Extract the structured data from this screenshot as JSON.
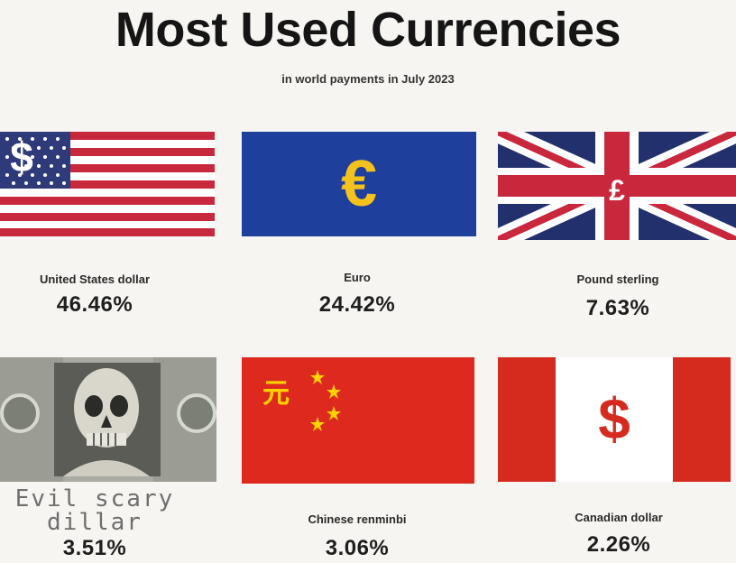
{
  "header": {
    "title": "Most Used Currencies",
    "subtitle": "in world payments in July 2023"
  },
  "currencies": [
    {
      "name": "United States dollar",
      "percent": "46.46%",
      "symbol": "$",
      "flag": "us-flag"
    },
    {
      "name": "Euro",
      "percent": "24.42%",
      "symbol": "€",
      "flag": "eu-flag"
    },
    {
      "name": "Pound sterling",
      "percent": "7.63%",
      "symbol": "£",
      "flag": "uk-flag"
    },
    {
      "name": "Evil scary dillar",
      "percent": "3.51%",
      "symbol": "",
      "flag": "skull-banknote"
    },
    {
      "name": "Chinese renminbi",
      "percent": "3.06%",
      "symbol": "元",
      "flag": "china-flag"
    },
    {
      "name": "Canadian dollar",
      "percent": "2.26%",
      "symbol": "$",
      "flag": "canada-flag"
    }
  ],
  "colors": {
    "us_red": "#c8283b",
    "us_blue": "#2f3a7a",
    "eu_blue": "#1f3f9c",
    "euro_gold": "#f3c21d",
    "uk_blue": "#23306e",
    "uk_red": "#c9273c",
    "china_red": "#de2a1e",
    "china_gold": "#ffd200",
    "canada_red": "#d52b1e"
  }
}
